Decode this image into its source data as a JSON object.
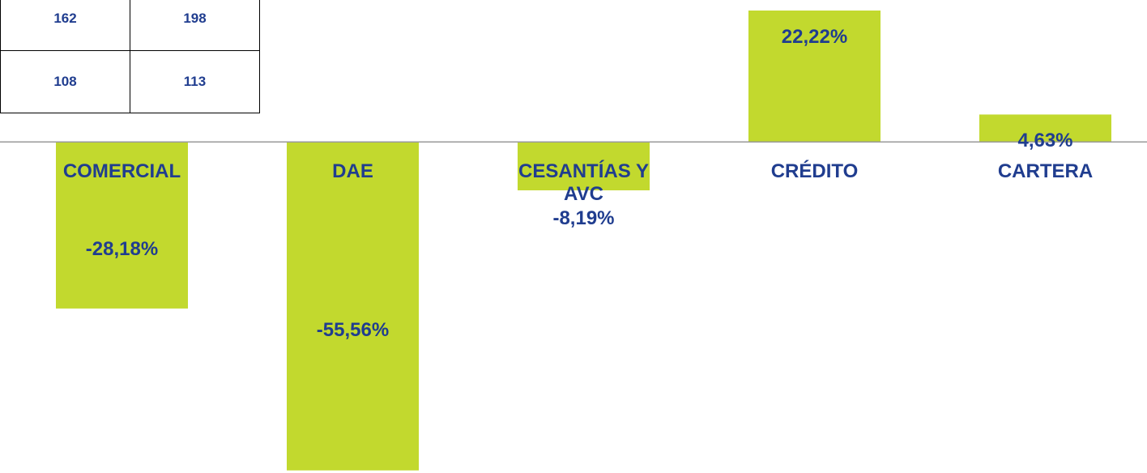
{
  "table": {
    "rows": [
      [
        "162",
        "198"
      ],
      [
        "108",
        "113"
      ]
    ]
  },
  "chart_data": {
    "type": "bar",
    "categories": [
      "COMERCIAL",
      "DAE",
      "CESANTÍAS Y AVC",
      "CRÉDITO",
      "CARTERA"
    ],
    "values": [
      -28.18,
      -55.56,
      -8.19,
      22.22,
      4.63
    ],
    "value_labels": [
      "-28,18%",
      "-55,56%",
      "-8,19%",
      "22,22%",
      "4,63%"
    ],
    "color": "#c2d92e",
    "ylim": [
      -56,
      24
    ]
  }
}
